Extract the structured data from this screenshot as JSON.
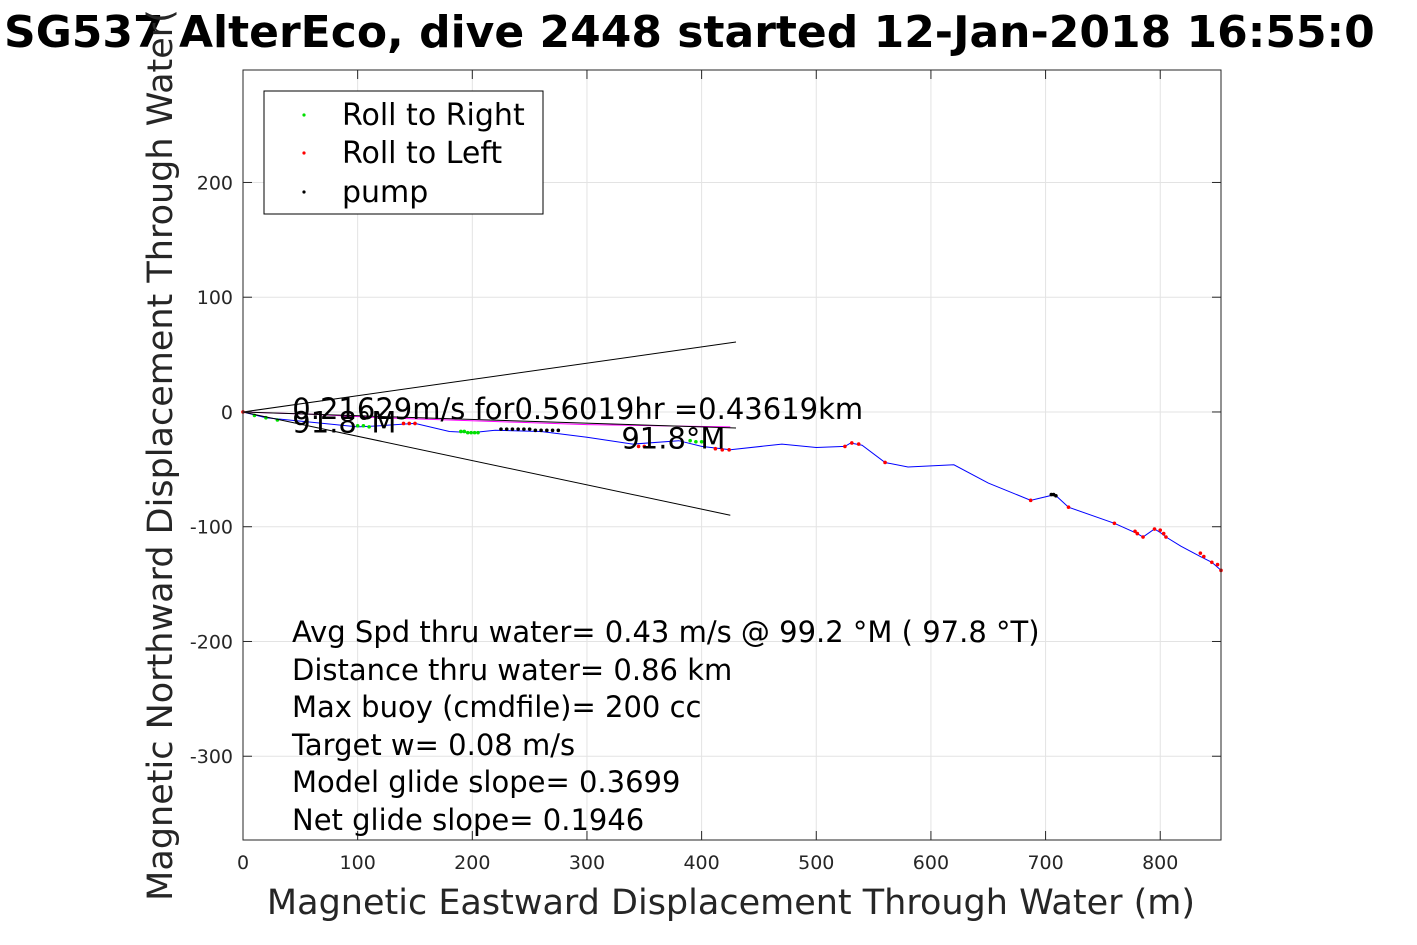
{
  "chart_data": {
    "type": "line",
    "title": "SG537 AlterEco, dive 2448 started 12-Jan-2018 16:55:0",
    "xlabel": "Magnetic Eastward Displacement Through Water (m)",
    "ylabel": "Magnetic Northward Displacement Through Water(",
    "xlim": [
      0,
      853
    ],
    "ylim": [
      -373,
      298
    ],
    "xticks": [
      0,
      100,
      200,
      300,
      400,
      500,
      600,
      700,
      800
    ],
    "yticks": [
      200,
      100,
      0,
      -100,
      -200,
      -300
    ],
    "xtick_labels": [
      "0",
      "100",
      "200",
      "300",
      "400",
      "500",
      "600",
      "700",
      "800"
    ],
    "ytick_labels": [
      "200",
      "100",
      "0",
      "-100",
      "-200",
      "-300"
    ],
    "grid": true,
    "legend": {
      "placement": "top-left",
      "entries": [
        {
          "label": "Roll to Right",
          "color": "#00e000"
        },
        {
          "label": "Roll to Left",
          "color": "#ff0000"
        },
        {
          "label": "pump",
          "color": "#000000"
        }
      ]
    },
    "series": [
      {
        "style": "track",
        "color": "#0000ff",
        "x": [
          0,
          20,
          60,
          100,
          120,
          150,
          180,
          200,
          220,
          260,
          300,
          340,
          380,
          400,
          425,
          470,
          500,
          525,
          530,
          540,
          560,
          580,
          620,
          650,
          687,
          708,
          720,
          760,
          780,
          785,
          795,
          800,
          805,
          818,
          835,
          845,
          853
        ],
        "y": [
          0,
          -5,
          -9,
          -13,
          -12,
          -10,
          -17,
          -18,
          -16,
          -17,
          -22,
          -28,
          -25,
          -30,
          -33,
          -28,
          -31,
          -30,
          -27,
          -29,
          -44,
          -48,
          -46,
          -62,
          -77,
          -72,
          -83,
          -97,
          -106,
          -109,
          -102,
          -105,
          -109,
          -117,
          -126,
          -131,
          -138
        ]
      },
      {
        "style": "track",
        "color": "#ff00ff",
        "x": [
          0,
          60,
          120,
          180,
          240,
          300,
          360,
          425
        ],
        "y": [
          0,
          -2,
          -5,
          -7,
          -9,
          -11,
          -12,
          -13
        ]
      },
      {
        "name": "Roll to Right",
        "style": "markers",
        "color": "#00e000",
        "x": [
          10,
          20,
          30,
          100,
          105,
          110,
          190,
          193,
          196,
          199,
          202,
          205,
          390,
          395,
          400
        ],
        "y": [
          -3,
          -5,
          -7,
          -12,
          -12,
          -13,
          -17,
          -17,
          -18,
          -18,
          -18,
          -18,
          -25,
          -26,
          -26
        ]
      },
      {
        "name": "Roll to Left",
        "style": "markers",
        "color": "#ff0000",
        "x": [
          0,
          140,
          145,
          150,
          345,
          350,
          412,
          418,
          424,
          525,
          531,
          537,
          560,
          687,
          720,
          760,
          778,
          780,
          785,
          795,
          800,
          803,
          805,
          835,
          838,
          845,
          850,
          853
        ],
        "y": [
          0,
          -10,
          -10,
          -10,
          -30,
          -30,
          -32,
          -33,
          -33,
          -30,
          -27,
          -28,
          -44,
          -77,
          -83,
          -97,
          -104,
          -106,
          -109,
          -102,
          -103,
          -106,
          -109,
          -123,
          -126,
          -131,
          -133,
          -138
        ]
      },
      {
        "name": "pump",
        "style": "markers",
        "color": "#000000",
        "x": [
          225,
          230,
          235,
          240,
          245,
          250,
          255,
          260,
          265,
          270,
          275,
          705,
          707,
          709
        ],
        "y": [
          -15,
          -15,
          -15,
          -15,
          -15,
          -15,
          -16,
          -16,
          -16,
          -16,
          -16,
          -72,
          -72,
          -73
        ]
      },
      {
        "style": "line",
        "color": "#000000",
        "x": [
          0,
          430
        ],
        "y": [
          0,
          61
        ]
      },
      {
        "style": "line",
        "color": "#000000",
        "x": [
          0,
          425
        ],
        "y": [
          0,
          -90
        ]
      },
      {
        "style": "line",
        "color": "#000000",
        "x": [
          0,
          430
        ],
        "y": [
          0,
          -14
        ]
      }
    ],
    "annotations": [
      {
        "text": "0.21629m/s for0.56019hr =0.43619km",
        "x": 43,
        "y": -6
      },
      {
        "text": "91.8°M",
        "x": 43,
        "y": -18
      },
      {
        "text": "91.8°M",
        "x": 330,
        "y": -32
      }
    ],
    "stats": [
      "Avg Spd thru water=  0.43 m/s @  99.2 °M ( 97.8 °T)",
      "Distance thru water=  0.86 km",
      "Max buoy (cmdfile)= 200 cc",
      "Target w= 0.08 m/s",
      "Model glide slope= 0.3699",
      "Net glide slope= 0.1946"
    ]
  }
}
